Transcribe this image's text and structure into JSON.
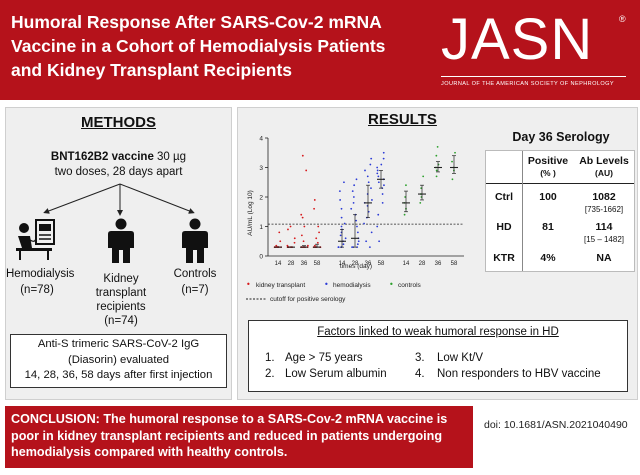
{
  "header": {
    "title_lines": [
      "Humoral Response After SARS-Cov-2 mRNA",
      "Vaccine in a Cohort of Hemodialysis Patients",
      "and Kidney Transplant Recipients"
    ],
    "logo_text": "JASN",
    "logo_sub": "JOURNAL OF THE AMERICAN SOCIETY OF NEPHROLOGY"
  },
  "methods": {
    "title": "METHODS",
    "vaccine_name": "BNT162B2 vaccine",
    "vaccine_dose": " 30 µg",
    "vaccine_schedule": "two doses, 28 days apart",
    "groups": [
      {
        "label": "Hemodialysis",
        "n": "(n=78)",
        "icon": "hemodialysis-patient-icon"
      },
      {
        "label_lines": [
          "Kidney",
          "transplant",
          "recipients"
        ],
        "n": "(n=74)",
        "icon": "transplant-recipient-icon"
      },
      {
        "label": "Controls",
        "n": "(n=7)",
        "icon": "control-person-icon"
      }
    ],
    "assay_lines": [
      "Anti-S trimeric SARS-CoV-2 IgG",
      "(Diasorin) evaluated",
      "14, 28, 36, 58 days after first injection"
    ]
  },
  "results": {
    "title": "RESULTS",
    "serology": {
      "title": "Day 36 Serology",
      "col_positive": "Positive",
      "col_positive_unit": "(% )",
      "col_ab": "Ab Levels",
      "col_ab_unit": "(AU)",
      "rows": [
        {
          "group": "Ctrl",
          "positive": "100",
          "ab": "1082",
          "range": "[735-1662]"
        },
        {
          "group": "HD",
          "positive": "81",
          "ab": "114",
          "range": "[15 – 1482]"
        },
        {
          "group": "KTR",
          "positive": "4%",
          "ab": "NA",
          "range": ""
        }
      ]
    },
    "factors": {
      "title": "Factors linked to weak humoral response in HD",
      "items": [
        {
          "num": "1.",
          "text": "Age > 75 years"
        },
        {
          "num": "2.",
          "text": "Low Serum albumin"
        },
        {
          "num": "3.",
          "text": "Low Kt/V"
        },
        {
          "num": "4.",
          "text": "Non responders to HBV vaccine"
        }
      ]
    }
  },
  "chart_data": {
    "type": "scatter",
    "xlabel": "times (day)",
    "ylabel": "AU/mL (Log 10)",
    "ylim": [
      0,
      4
    ],
    "yticks": [
      "0",
      "1",
      "2",
      "3",
      "4"
    ],
    "cutoff_y": 1.08,
    "legend": {
      "kidney": "kidney transplant",
      "hd": "hemodialysis",
      "ctrl": "controls",
      "cutoff": "cutoff for positive serology"
    },
    "series": [
      {
        "name": "kidney transplant",
        "color": "#d7191c",
        "groups": [
          {
            "x": "14",
            "median": 0.3,
            "q1": 0.3,
            "q3": 0.3,
            "points": [
              0.3,
              0.3,
              0.3,
              0.3,
              0.3,
              0.3,
              0.3,
              0.3,
              0.3,
              0.3,
              0.35,
              0.5,
              0.8
            ]
          },
          {
            "x": "28",
            "median": 0.3,
            "q1": 0.3,
            "q3": 0.3,
            "points": [
              0.3,
              0.3,
              0.3,
              0.3,
              0.3,
              0.3,
              0.3,
              0.3,
              0.35,
              0.45,
              0.6,
              0.9,
              1.0
            ]
          },
          {
            "x": "36",
            "median": 0.3,
            "q1": 0.3,
            "q3": 0.35,
            "points": [
              0.3,
              0.3,
              0.3,
              0.3,
              0.3,
              0.3,
              0.3,
              0.35,
              0.5,
              0.7,
              1.0,
              1.3,
              1.4,
              2.9,
              3.4
            ]
          },
          {
            "x": "58",
            "median": 0.3,
            "q1": 0.3,
            "q3": 0.4,
            "points": [
              0.3,
              0.3,
              0.3,
              0.3,
              0.3,
              0.3,
              0.35,
              0.45,
              0.6,
              0.8,
              1.0,
              1.6,
              1.9
            ]
          }
        ]
      },
      {
        "name": "hemodialysis",
        "color": "#2b3bd6",
        "groups": [
          {
            "x": "14",
            "median": 0.5,
            "q1": 0.3,
            "q3": 0.9,
            "points": [
              0.3,
              0.3,
              0.3,
              0.3,
              0.4,
              0.5,
              0.6,
              0.7,
              0.8,
              0.9,
              1.0,
              1.1,
              1.3,
              1.6,
              1.9,
              2.2,
              2.5
            ]
          },
          {
            "x": "28",
            "median": 0.6,
            "q1": 0.3,
            "q3": 1.4,
            "points": [
              0.3,
              0.3,
              0.3,
              0.4,
              0.5,
              0.6,
              0.8,
              1.0,
              1.2,
              1.4,
              1.6,
              1.8,
              2.0,
              2.2,
              2.4,
              2.6
            ]
          },
          {
            "x": "36",
            "median": 1.8,
            "q1": 1.3,
            "q3": 2.4,
            "points": [
              0.3,
              0.5,
              0.8,
              1.1,
              1.3,
              1.5,
              1.7,
              1.8,
              1.9,
              2.1,
              2.3,
              2.5,
              2.7,
              2.9,
              3.1,
              3.3
            ]
          },
          {
            "x": "58",
            "median": 2.6,
            "q1": 2.3,
            "q3": 2.9,
            "points": [
              0.5,
              1.0,
              1.4,
              1.8,
              2.1,
              2.3,
              2.4,
              2.5,
              2.6,
              2.7,
              2.8,
              2.9,
              3.0,
              3.1,
              3.3,
              3.5
            ]
          }
        ]
      },
      {
        "name": "controls",
        "color": "#2ca02c",
        "groups": [
          {
            "x": "14",
            "median": 1.8,
            "q1": 1.5,
            "q3": 2.2,
            "points": [
              1.4,
              1.6,
              1.8,
              2.0,
              2.4
            ]
          },
          {
            "x": "28",
            "median": 2.1,
            "q1": 1.9,
            "q3": 2.4,
            "points": [
              1.8,
              2.0,
              2.1,
              2.3,
              2.7
            ]
          },
          {
            "x": "36",
            "median": 3.0,
            "q1": 2.85,
            "q3": 3.2,
            "points": [
              2.7,
              2.9,
              3.0,
              3.1,
              3.4,
              3.7
            ]
          },
          {
            "x": "58",
            "median": 3.0,
            "q1": 2.8,
            "q3": 3.4,
            "points": [
              2.6,
              2.9,
              3.0,
              3.2,
              3.5
            ]
          }
        ]
      }
    ]
  },
  "conclusion": "CONCLUSION: The humoral response to a SARS-Cov-2 mRNA vaccine is poor in kidney transplant recipients and reduced in patients undergoing hemodialysis compared with healthy controls.",
  "doi": "doi: 10.1681/ASN.2021040490"
}
